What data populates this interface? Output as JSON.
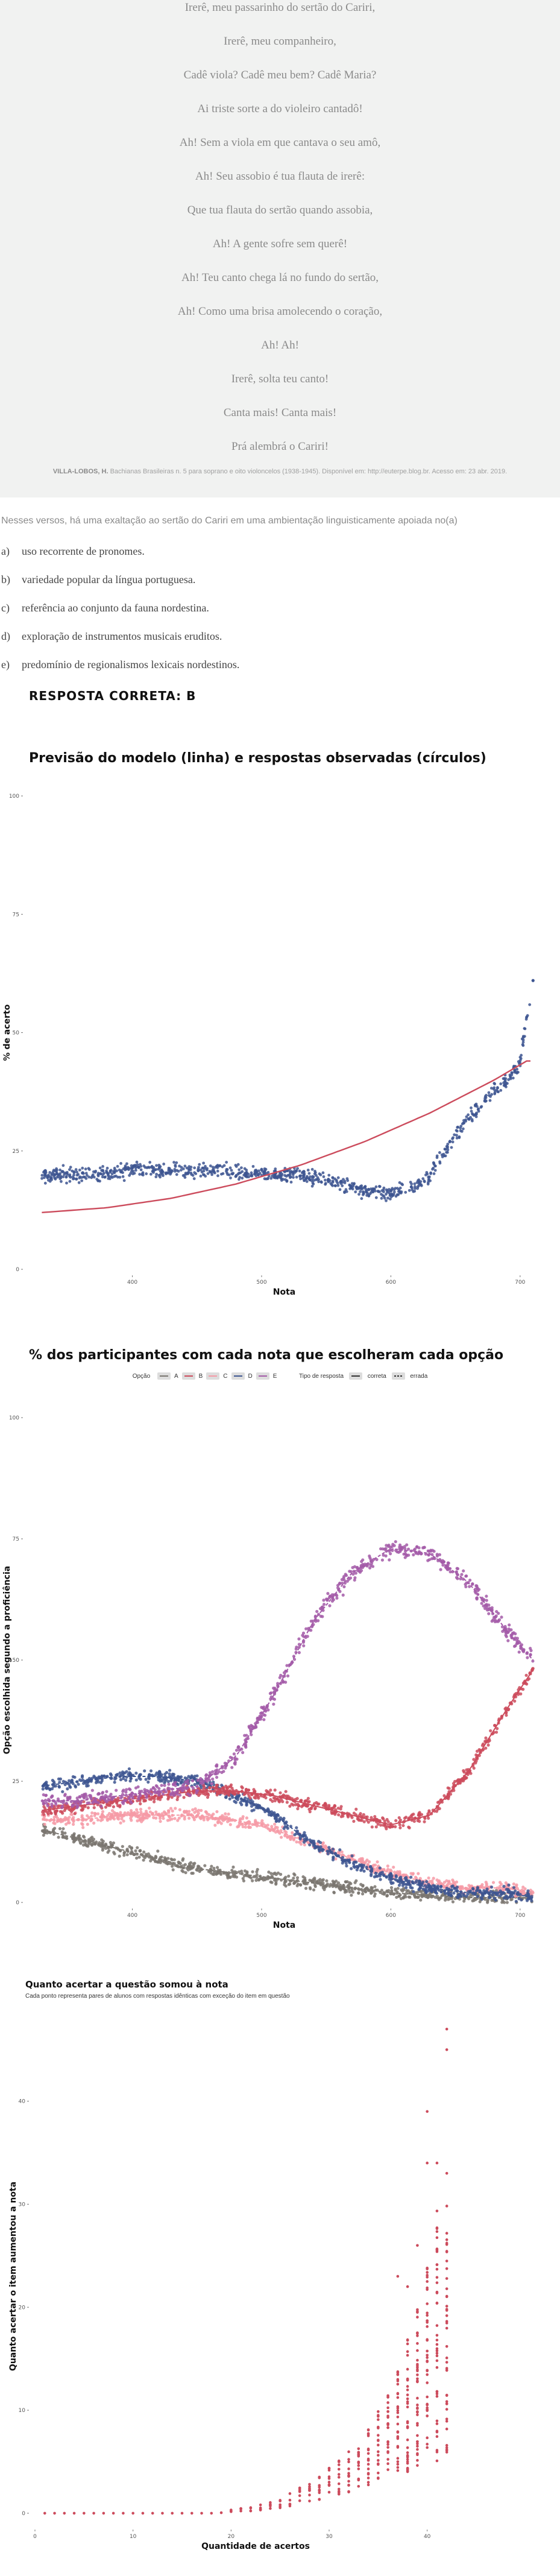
{
  "poem": {
    "lines": [
      "Irerê, meu passarinho do sertão do Cariri,",
      "Irerê, meu companheiro,",
      "Cadê viola? Cadê meu bem? Cadê Maria?",
      "Ai triste sorte a do violeiro cantadô!",
      "Ah! Sem a viola em que cantava o seu amô,",
      "Ah! Seu assobio é tua flauta de irerê:",
      "Que tua flauta do sertão quando assobia,",
      "Ah! A gente sofre sem querê!",
      "Ah! Teu canto chega lá no fundo do sertão,",
      "Ah! Como uma brisa amolecendo o coração,",
      "Ah! Ah!",
      "Irerê, solta teu canto!",
      "Canta mais! Canta mais!",
      "Prá alembrá o Cariri!"
    ],
    "source_author": "VILLA-LOBOS, H.",
    "source_text": " Bachianas Brasileiras n. 5 para soprano e oito violoncelos (1938-1945). Disponível em: http://euterpe.blog.br. Acesso em: 23 abr. 2019."
  },
  "question": {
    "prompt": "Nesses versos, há uma exaltação ao sertão do Cariri em uma ambientação linguisticamente apoiada no(a)",
    "alternatives": [
      {
        "letter": "a)",
        "text": "uso recorrente de pronomes."
      },
      {
        "letter": "b)",
        "text": "variedade popular da língua portuguesa."
      },
      {
        "letter": "c)",
        "text": "referência ao conjunto da fauna nordestina."
      },
      {
        "letter": "d)",
        "text": "exploração de instrumentos musicais eruditos."
      },
      {
        "letter": "e)",
        "text": "predomínio de regionalismos lexicais nordestinos."
      }
    ],
    "answer": "RESPOSTA CORRETA: B"
  },
  "colors": {
    "model_line": "#cc4b5c",
    "observed_points": "#3d5591",
    "opt_A": "#7a7670",
    "opt_B": "#cc4b5c",
    "opt_C": "#f69aa6",
    "opt_D": "#3d5591",
    "opt_E": "#a35aa8",
    "chart3_points": "#cc4b5c"
  },
  "chart_data": [
    {
      "type": "scatter",
      "title": "Previsão do modelo (linha) e respostas observadas (círculos)",
      "xlabel": "Nota",
      "ylabel": "% de acerto",
      "xlim": [
        320,
        715
      ],
      "ylim": [
        0,
        100
      ],
      "xticks": [
        400,
        500,
        600,
        700
      ],
      "yticks": [
        0,
        25,
        50,
        75,
        100
      ],
      "model_line": {
        "x": [
          330,
          380,
          430,
          480,
          530,
          580,
          630,
          680,
          705
        ],
        "y": [
          12,
          13,
          15,
          18,
          22,
          27,
          33,
          40,
          44
        ]
      },
      "observed": {
        "x": [
          330,
          350,
          375,
          400,
          425,
          450,
          475,
          500,
          525,
          550,
          575,
          590,
          600,
          610,
          620,
          630,
          640,
          650,
          660,
          670,
          680,
          690,
          700,
          710
        ],
        "y": [
          20,
          20,
          20,
          21,
          21,
          21,
          21,
          20,
          20,
          19,
          17,
          16,
          16,
          17,
          18,
          20,
          24,
          28,
          32,
          35,
          38,
          40,
          44,
          61
        ]
      }
    },
    {
      "type": "scatter",
      "title": "% dos participantes com cada nota que escolheram cada opção",
      "xlabel": "Nota",
      "ylabel": "Opção escolhida segundo a proficiência",
      "xlim": [
        320,
        715
      ],
      "ylim": [
        0,
        100
      ],
      "xticks": [
        400,
        500,
        600,
        700
      ],
      "yticks": [
        0,
        25,
        50,
        75,
        100
      ],
      "legend": {
        "options_label": "Opção",
        "options": [
          "A",
          "B",
          "C",
          "D",
          "E"
        ],
        "type_label": "Tipo de resposta",
        "types": [
          "correta",
          "errada"
        ]
      },
      "x": [
        330,
        360,
        390,
        420,
        450,
        480,
        510,
        540,
        570,
        600,
        630,
        660,
        690,
        710
      ],
      "series": [
        {
          "name": "A",
          "values": [
            15,
            13,
            11,
            9,
            7,
            6,
            5,
            4,
            3,
            2,
            1.5,
            1,
            1,
            1
          ]
        },
        {
          "name": "B",
          "values": [
            19,
            20,
            21,
            22,
            23,
            23,
            22,
            20,
            18,
            16,
            18,
            27,
            40,
            48
          ]
        },
        {
          "name": "C",
          "values": [
            17,
            17,
            18,
            18,
            18,
            17,
            15,
            12,
            9,
            6,
            4,
            3,
            3,
            2
          ]
        },
        {
          "name": "D",
          "values": [
            24,
            25,
            26,
            26,
            25,
            22,
            18,
            12,
            8,
            5,
            3,
            2,
            2,
            1
          ]
        },
        {
          "name": "E",
          "values": [
            21,
            21,
            22,
            23,
            24,
            30,
            43,
            58,
            68,
            73,
            72,
            66,
            56,
            50
          ]
        }
      ]
    },
    {
      "type": "scatter",
      "title": "Quanto acertar a questão somou à nota",
      "subtitle": "Cada ponto representa pares de alunos com respostas idênticas com exceção do item em questão",
      "xlabel": "Quantidade de acertos",
      "ylabel": "Quanto acertar o item aumentou a nota",
      "xlim": [
        0,
        45
      ],
      "ylim": [
        -1,
        47
      ],
      "xticks": [
        0,
        10,
        20,
        30,
        40
      ],
      "yticks": [
        0,
        10,
        20,
        30,
        40
      ],
      "points": {
        "x": [
          1,
          2,
          3,
          4,
          5,
          6,
          7,
          8,
          9,
          10,
          11,
          12,
          13,
          14,
          15,
          16,
          17,
          18,
          19,
          20,
          21,
          22,
          23,
          24,
          25,
          26,
          27,
          28,
          29,
          30,
          31,
          32,
          33,
          34,
          35,
          36,
          37,
          38,
          39,
          40,
          41,
          42
        ],
        "y_low": [
          0,
          0,
          0,
          0,
          0,
          0,
          0,
          0,
          0,
          0,
          0,
          0,
          0,
          0,
          0,
          0,
          0,
          0,
          0.05,
          0.1,
          0.15,
          0.2,
          0.3,
          0.4,
          0.5,
          0.7,
          0.8,
          1,
          1.2,
          1.5,
          1.8,
          2,
          2.4,
          2.7,
          3,
          3.3,
          3.6,
          4,
          4.3,
          4.6,
          5,
          5.3
        ],
        "y_high": [
          0,
          0,
          0,
          0,
          0,
          0,
          0,
          0,
          0,
          0,
          0,
          0,
          0,
          0,
          0,
          0,
          0.1,
          0.2,
          0.3,
          0.4,
          0.5,
          0.7,
          0.9,
          1.2,
          1.5,
          2,
          2.5,
          3,
          3.6,
          4.4,
          5.2,
          6,
          7,
          8.5,
          10,
          11.5,
          14,
          17,
          20,
          24,
          30,
          32
        ],
        "outliers": [
          {
            "x": 37,
            "y": 23
          },
          {
            "x": 38,
            "y": 22
          },
          {
            "x": 39,
            "y": 26
          },
          {
            "x": 40,
            "y": 39
          },
          {
            "x": 40,
            "y": 34
          },
          {
            "x": 41,
            "y": 34
          },
          {
            "x": 42,
            "y": 33
          },
          {
            "x": 42,
            "y": 45
          },
          {
            "x": 42,
            "y": 47
          }
        ]
      }
    }
  ]
}
